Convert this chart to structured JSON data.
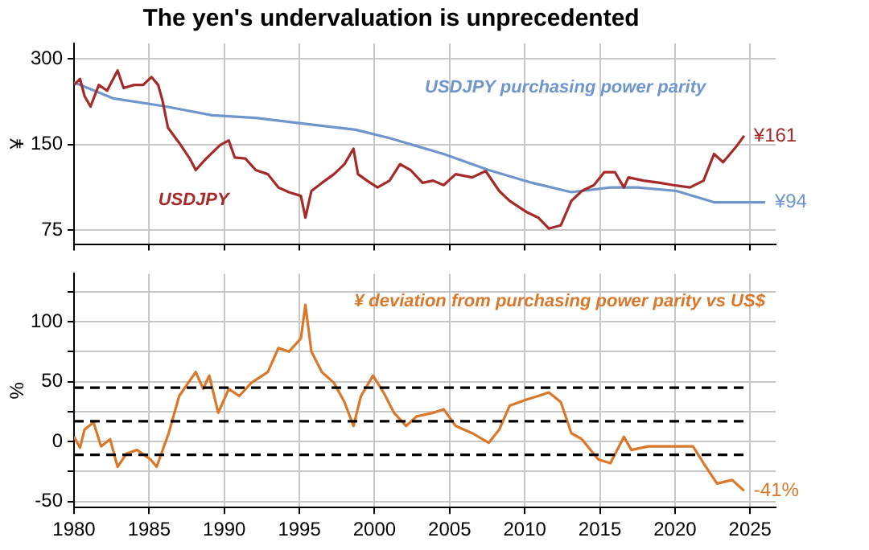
{
  "chart_data": [
    {
      "type": "line",
      "title": "The yen's undervaluation is unprecedented",
      "ylabel": "¥",
      "log": "y",
      "xlim": [
        1980,
        2026.7
      ],
      "xticks": [
        1980,
        1985,
        1990,
        1995,
        2000,
        2005,
        2010,
        2015,
        2020,
        2025
      ],
      "ylim": [
        67,
        340
      ],
      "yticks": [
        75,
        150,
        300
      ],
      "tick_labels": "y",
      "grid": true,
      "legend": false,
      "line_style": "solid",
      "marker": "none",
      "series": [
        {
          "name": "USDJPY",
          "color": "#a52a2a",
          "x": [
            1980.0,
            1980.4,
            1980.7,
            1981.1,
            1981.65,
            1982.2,
            1982.9,
            1983.3,
            1984.0,
            1984.6,
            1985.15,
            1985.6,
            1985.9,
            1986.25,
            1987.0,
            1987.7,
            1988.1,
            1988.8,
            1989.7,
            1990.3,
            1990.7,
            1991.4,
            1992.1,
            1992.9,
            1993.6,
            1994.3,
            1995.1,
            1995.4,
            1995.8,
            1996.5,
            1997.3,
            1998.0,
            1998.6,
            1998.9,
            1999.5,
            2000.2,
            2001.0,
            2001.7,
            2002.4,
            2003.2,
            2003.9,
            2004.6,
            2005.4,
            2006.5,
            2007.4,
            2008.3,
            2009.0,
            2010.1,
            2010.9,
            2011.6,
            2012.4,
            2013.1,
            2013.8,
            2014.6,
            2015.3,
            2016.0,
            2016.6,
            2016.9,
            2017.9,
            2019.0,
            2019.9,
            2021.0,
            2021.9,
            2022.6,
            2023.2,
            2024.1,
            2024.6
          ],
          "values": [
            243,
            255,
            222,
            204,
            243,
            232,
            273,
            237,
            243,
            243,
            259,
            243,
            213,
            172,
            152,
            134,
            122,
            134,
            149,
            155,
            135,
            134,
            122,
            118,
            106,
            102,
            99,
            83,
            103,
            110,
            118,
            128,
            145,
            118,
            112,
            106,
            112,
            128,
            122,
            110,
            112,
            108,
            118,
            115,
            121,
            103,
            95,
            87,
            83,
            76,
            78,
            95,
            103,
            108,
            120,
            120,
            106,
            115,
            112,
            110,
            108,
            106,
            112,
            139,
            130,
            148,
            161
          ],
          "value_labels": [
            null,
            null,
            null,
            null,
            null,
            null,
            null,
            null,
            null,
            null,
            null,
            null,
            null,
            null,
            null,
            null,
            null,
            null,
            null,
            null,
            null,
            null,
            null,
            null,
            null,
            null,
            null,
            null,
            null,
            null,
            null,
            null,
            null,
            null,
            null,
            null,
            null,
            null,
            null,
            null,
            null,
            null,
            null,
            null,
            null,
            null,
            null,
            null,
            null,
            null,
            null,
            null,
            null,
            null,
            null,
            null,
            null,
            null,
            null,
            null,
            null,
            null,
            null,
            null,
            null,
            null,
            "¥161"
          ]
        },
        {
          "name": "USDJPY purchasing power parity",
          "color": "#6f96cc",
          "x": [
            1980.0,
            1982.6,
            1985.9,
            1989.2,
            1992.1,
            1995.1,
            1998.75,
            2001.0,
            2004.6,
            2007.6,
            2010.5,
            2013.1,
            2015.7,
            2017.5,
            2020.1,
            2022.6,
            2026.0
          ],
          "values": [
            248,
            218,
            205,
            190,
            186,
            178,
            169,
            158,
            139,
            122,
            110,
            102,
            106,
            106,
            103,
            94,
            94
          ],
          "value_labels": [
            null,
            null,
            null,
            null,
            null,
            null,
            null,
            null,
            null,
            null,
            null,
            null,
            null,
            null,
            null,
            null,
            "¥94"
          ]
        }
      ]
    },
    {
      "type": "line",
      "ylabel": "%",
      "xlim": [
        1980,
        2026.7
      ],
      "xticks": [
        1980,
        1985,
        1990,
        1995,
        2000,
        2005,
        2010,
        2015,
        2020,
        2025
      ],
      "ylim": [
        -55,
        140
      ],
      "yticks": [
        -50,
        {
          "value": -25,
          "label": null
        },
        0,
        {
          "value": 25,
          "label": null
        },
        50,
        {
          "value": 75,
          "label": null
        },
        100,
        {
          "value": 125,
          "label": null
        }
      ],
      "grid": true,
      "legend": false,
      "line_style": "solid",
      "marker": "none",
      "ref_lines": [
        {
          "axis": "y",
          "value": 45,
          "color": "#000000",
          "line_style": "dashed"
        },
        {
          "axis": "y",
          "value": 17,
          "color": "#000000",
          "line_style": "dashed"
        },
        {
          "axis": "y",
          "value": -11,
          "color": "#000000",
          "line_style": "dashed"
        }
      ],
      "series": [
        {
          "name": "¥ deviation from purchasing power parity vs US$",
          "color": "#d9782b",
          "x": [
            1980.0,
            1980.4,
            1980.7,
            1981.3,
            1981.8,
            1982.4,
            1982.9,
            1983.5,
            1984.2,
            1985.1,
            1985.5,
            1986.3,
            1987.0,
            1988.1,
            1988.6,
            1989.0,
            1989.6,
            1990.3,
            1991.0,
            1991.8,
            1992.9,
            1993.6,
            1994.3,
            1995.1,
            1995.4,
            1995.8,
            1996.5,
            1997.3,
            1998.0,
            1998.6,
            1999.1,
            1999.9,
            2000.6,
            2001.3,
            2002.1,
            2002.8,
            2003.9,
            2004.6,
            2005.4,
            2006.5,
            2007.6,
            2008.3,
            2009.0,
            2010.1,
            2010.9,
            2011.6,
            2012.4,
            2013.1,
            2013.8,
            2014.9,
            2015.7,
            2016.6,
            2017.1,
            2018.2,
            2019.3,
            2021.2,
            2021.9,
            2022.8,
            2023.8,
            2024.6
          ],
          "values": [
            4,
            -5,
            10,
            16,
            -4,
            2,
            -21,
            -10,
            -7,
            -15,
            -21,
            7,
            38,
            58,
            44,
            55,
            24,
            44,
            38,
            49,
            58,
            78,
            75,
            86,
            114,
            75,
            58,
            49,
            33,
            13,
            38,
            55,
            41,
            24,
            13,
            21,
            24,
            27,
            13,
            7,
            -1,
            10,
            30,
            35,
            38,
            41,
            33,
            7,
            2,
            -15,
            -18,
            4,
            -7,
            -4,
            -4,
            -4,
            -18,
            -35,
            -32,
            -41
          ],
          "value_labels": [
            null,
            null,
            null,
            null,
            null,
            null,
            null,
            null,
            null,
            null,
            null,
            null,
            null,
            null,
            null,
            null,
            null,
            null,
            null,
            null,
            null,
            null,
            null,
            null,
            null,
            null,
            null,
            null,
            null,
            null,
            null,
            null,
            null,
            null,
            null,
            null,
            null,
            null,
            null,
            null,
            null,
            null,
            null,
            null,
            null,
            null,
            null,
            null,
            null,
            null,
            null,
            null,
            null,
            null,
            null,
            null,
            null,
            null,
            null,
            "-41%"
          ]
        }
      ]
    }
  ]
}
